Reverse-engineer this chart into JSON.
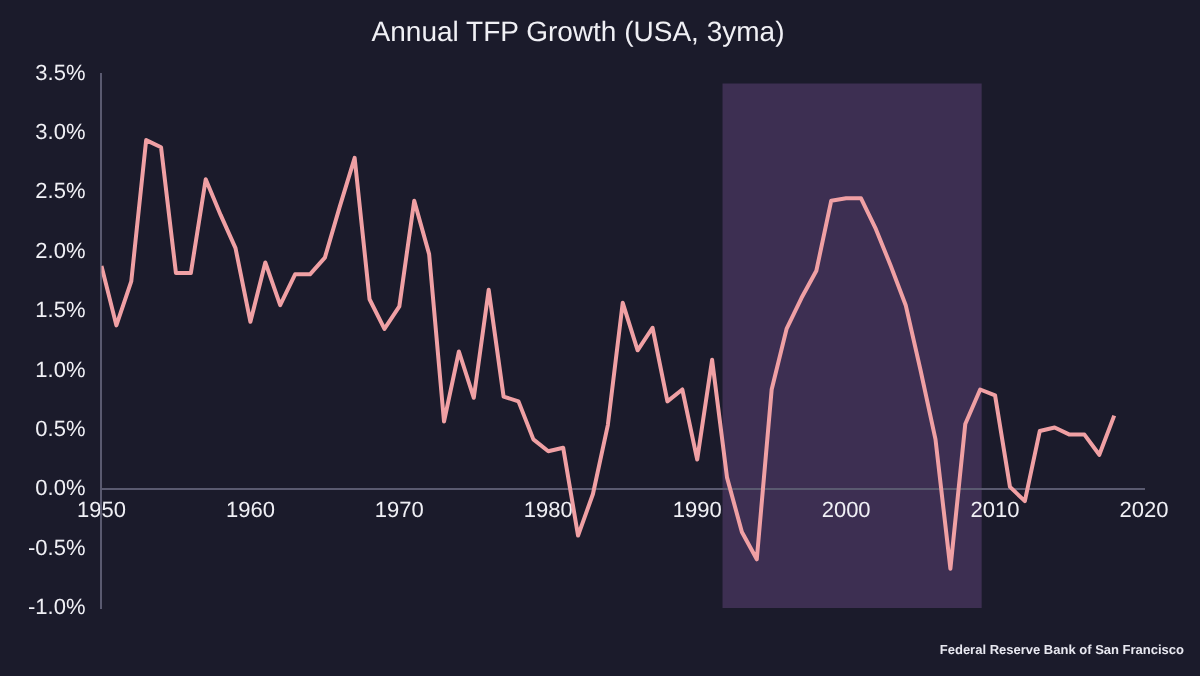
{
  "chart_data": {
    "type": "line",
    "title": "Annual TFP Growth (USA, 3yma)",
    "x": [
      1950,
      1951,
      1952,
      1953,
      1954,
      1955,
      1956,
      1957,
      1958,
      1959,
      1960,
      1961,
      1962,
      1963,
      1964,
      1965,
      1966,
      1967,
      1968,
      1969,
      1970,
      1971,
      1972,
      1973,
      1974,
      1975,
      1976,
      1977,
      1978,
      1979,
      1980,
      1981,
      1982,
      1983,
      1984,
      1985,
      1986,
      1987,
      1988,
      1989,
      1990,
      1991,
      1992,
      1993,
      1994,
      1995,
      1996,
      1997,
      1998,
      1999,
      2000,
      2001,
      2002,
      2003,
      2004,
      2005,
      2006,
      2007,
      2008,
      2009,
      2010,
      2011,
      2012,
      2013,
      2014,
      2015,
      2016,
      2017,
      2018
    ],
    "series": [
      {
        "color": "#f0a0a4",
        "values": [
          1.88,
          1.38,
          1.75,
          2.94,
          2.88,
          1.82,
          1.82,
          2.61,
          2.31,
          2.03,
          1.41,
          1.91,
          1.55,
          1.81,
          1.81,
          1.95,
          2.38,
          2.79,
          1.6,
          1.35,
          1.54,
          2.43,
          1.98,
          0.57,
          1.16,
          0.77,
          1.68,
          0.78,
          0.74,
          0.42,
          0.32,
          0.35,
          -0.39,
          -0.04,
          0.54,
          1.57,
          1.17,
          1.36,
          0.74,
          0.84,
          0.25,
          1.09,
          0.1,
          -0.36,
          -0.59,
          0.84,
          1.35,
          1.61,
          1.84,
          2.43,
          2.45,
          2.45,
          2.19,
          1.88,
          1.55,
          1.0,
          0.42,
          -0.67,
          0.55,
          0.84,
          0.79,
          0.02,
          -0.1,
          0.49,
          0.52,
          0.46,
          0.46,
          0.29,
          0.62
        ]
      }
    ],
    "xlim": [
      1950,
      2020
    ],
    "xticks": [
      1950,
      1960,
      1970,
      1980,
      1990,
      2000,
      2010,
      2020
    ],
    "ylim": [
      -1,
      3.5
    ],
    "yticks": [
      {
        "value": -1,
        "label": "-1.0%"
      },
      {
        "value": -0.5,
        "label": "-0.5%"
      },
      {
        "value": 0,
        "label": "0.0%"
      },
      {
        "value": 0.5,
        "label": "0.5%"
      },
      {
        "value": 1,
        "label": "1.0%"
      },
      {
        "value": 1.5,
        "label": "1.5%"
      },
      {
        "value": 2,
        "label": "2.0%"
      },
      {
        "value": 2.5,
        "label": "2.5%"
      },
      {
        "value": 3,
        "label": "3.0%"
      },
      {
        "value": 3.5,
        "label": "3.5%"
      }
    ],
    "bands": [
      {
        "axis": "x",
        "from": 1991.7,
        "to": 2009.1,
        "color": "#3d2f52"
      }
    ],
    "grid": false,
    "legend": false,
    "marker": "none",
    "line_style": "solid",
    "annotations": [
      "Federal Reserve Bank of San Francisco"
    ]
  }
}
